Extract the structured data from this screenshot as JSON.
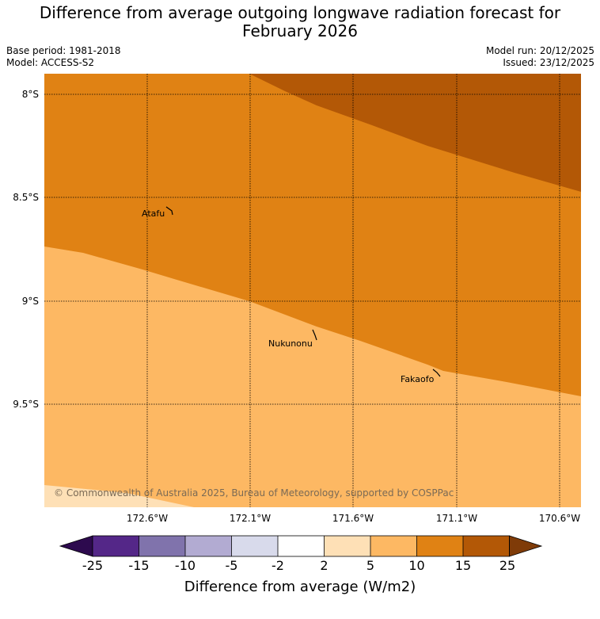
{
  "title_line1": "Difference from average outgoing longwave radiation forecast for",
  "title_line2": "February 2026",
  "base_period": "Base period: 1981-2018",
  "model": "Model: ACCESS-S2",
  "model_run": "Model run: 20/12/2025",
  "issued": "Issued: 23/12/2025",
  "latitude_labels": [
    "8°S",
    "8.5°S",
    "9°S",
    "9.5°S"
  ],
  "longitude_labels": [
    "172.6°W",
    "172.1°W",
    "171.6°W",
    "171.1°W",
    "170.6°W"
  ],
  "places": [
    "Atafu",
    "Nukunonu",
    "Fakaofo"
  ],
  "copyright": "© Commonwealth of Australia 2025, Bureau of Meteorology, supported by COSPPac",
  "colorbar": {
    "title": "Difference from average (W/m2)",
    "tick_labels": [
      "-25",
      "-15",
      "-10",
      "-5",
      "-2",
      "2",
      "5",
      "10",
      "15",
      "25"
    ],
    "colors": {
      "below_-25": "#2d0a4e",
      "-25_-15": "#542788",
      "-15_-10": "#8073ac",
      "-10_-5": "#b2abd2",
      "-5_-2": "#d8daeb",
      "-2_2": "#ffffff",
      "2_5": "#fee0b6",
      "5_10": "#fdb863",
      "10_15": "#e08214",
      "15_25": "#b35806",
      "above_25": "#7f3b08"
    }
  },
  "map_colors": {
    "band_2_5": "#fee0b6",
    "band_5_10": "#fdb863",
    "band_10_15": "#e08214",
    "band_15_25": "#b35806"
  }
}
